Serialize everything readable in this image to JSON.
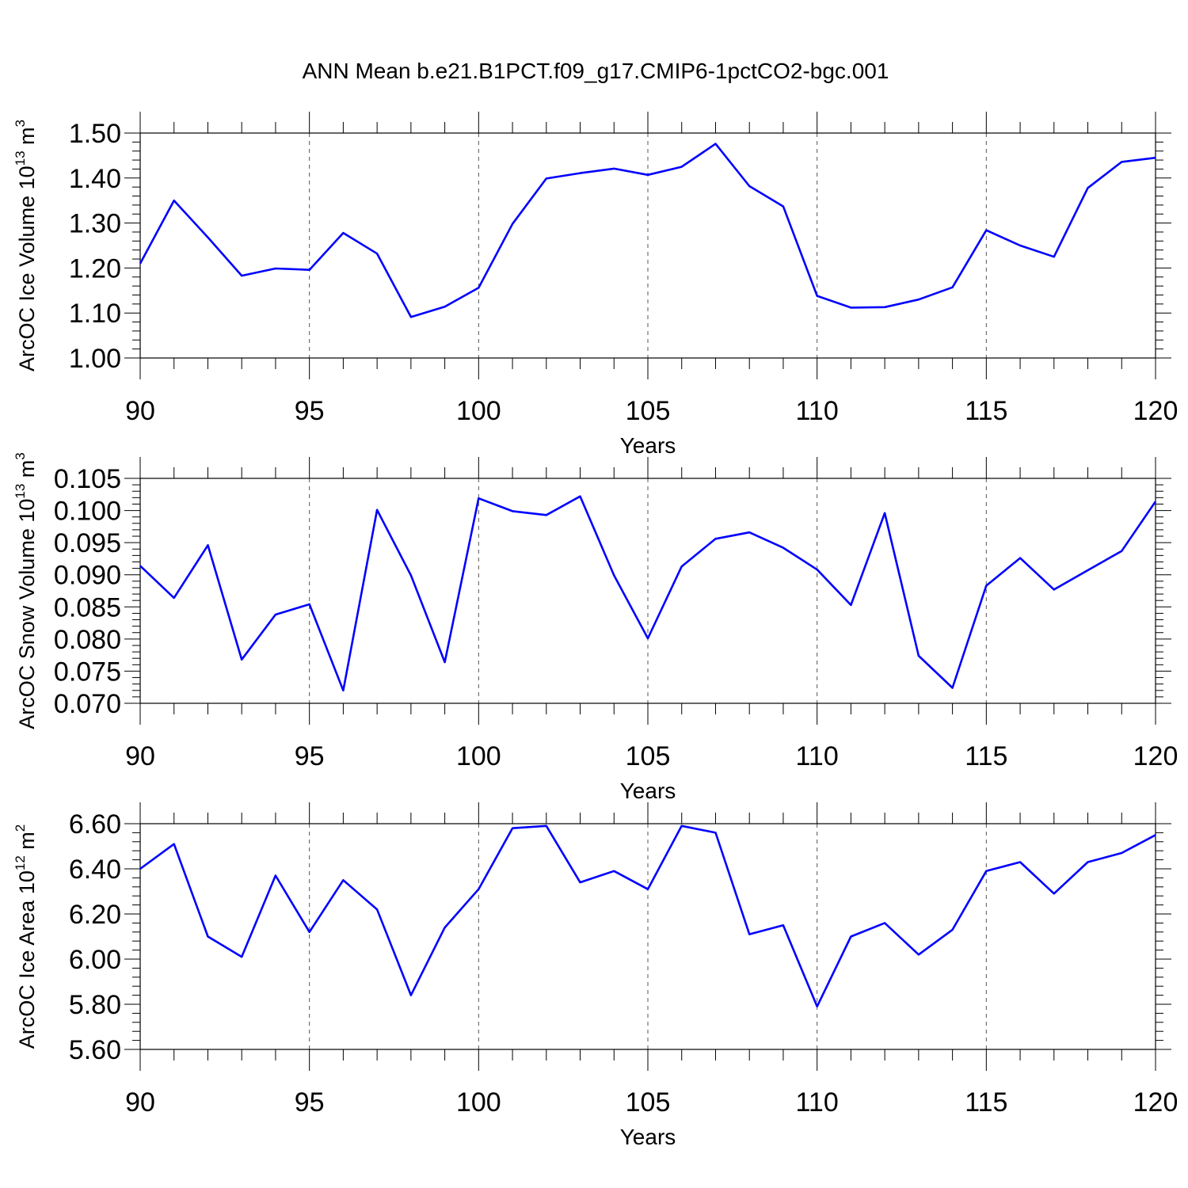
{
  "figure_title": "ANN Mean b.e21.B1PCT.f09_g17.CMIP6-1pctCO2-bgc.001",
  "chart_data": [
    {
      "type": "line",
      "ylabel": {
        "text": "ArcOC Ice Volume 10",
        "exp": "13",
        "unit": " m",
        "unit_exp": "3"
      },
      "xlabel": "Years",
      "xlim": [
        90,
        120
      ],
      "ylim": [
        1.0,
        1.5
      ],
      "xticks": [
        "90",
        "95",
        "100",
        "105",
        "110",
        "115",
        "120"
      ],
      "yticks": [
        "1.00",
        "1.10",
        "1.20",
        "1.30",
        "1.40",
        "1.50"
      ],
      "grid": "vertical dashed at major x ticks",
      "line_color": "#0000ff",
      "x": [
        90,
        91,
        92,
        93,
        94,
        95,
        96,
        97,
        98,
        99,
        100,
        101,
        102,
        103,
        104,
        105,
        106,
        107,
        108,
        109,
        110,
        111,
        112,
        113,
        114,
        115,
        116,
        117,
        118,
        119,
        120
      ],
      "y": [
        1.21,
        1.35,
        1.268,
        1.183,
        1.199,
        1.196,
        1.278,
        1.232,
        1.091,
        1.114,
        1.156,
        1.298,
        1.399,
        1.411,
        1.421,
        1.407,
        1.425,
        1.476,
        1.382,
        1.337,
        1.138,
        1.112,
        1.113,
        1.13,
        1.157,
        1.284,
        1.25,
        1.225,
        1.378,
        1.436,
        1.445
      ]
    },
    {
      "type": "line",
      "ylabel": {
        "text": "ArcOC Snow Volume 10",
        "exp": "13",
        "unit": " m",
        "unit_exp": "3"
      },
      "xlabel": "Years",
      "xlim": [
        90,
        120
      ],
      "ylim": [
        0.07,
        0.105
      ],
      "xticks": [
        "90",
        "95",
        "100",
        "105",
        "110",
        "115",
        "120"
      ],
      "yticks": [
        "0.070",
        "0.075",
        "0.080",
        "0.085",
        "0.090",
        "0.095",
        "0.100",
        "0.105"
      ],
      "grid": "vertical dashed at major x ticks",
      "line_color": "#0000ff",
      "x": [
        90,
        91,
        92,
        93,
        94,
        95,
        96,
        97,
        98,
        99,
        100,
        101,
        102,
        103,
        104,
        105,
        106,
        107,
        108,
        109,
        110,
        111,
        112,
        113,
        114,
        115,
        116,
        117,
        118,
        119,
        120
      ],
      "y": [
        0.0914,
        0.0864,
        0.0946,
        0.0768,
        0.0838,
        0.0854,
        0.072,
        0.1001,
        0.0899,
        0.0764,
        0.1019,
        0.0999,
        0.0993,
        0.1022,
        0.0899,
        0.0801,
        0.0913,
        0.0956,
        0.0966,
        0.0942,
        0.0908,
        0.0853,
        0.0996,
        0.0774,
        0.0724,
        0.0883,
        0.0926,
        0.0877,
        0.0907,
        0.0937,
        0.1014
      ]
    },
    {
      "type": "line",
      "ylabel": {
        "text": "ArcOC Ice Area 10",
        "exp": "12",
        "unit": " m",
        "unit_exp": "2"
      },
      "xlabel": "Years",
      "xlim": [
        90,
        120
      ],
      "ylim": [
        5.6,
        6.6
      ],
      "xticks": [
        "90",
        "95",
        "100",
        "105",
        "110",
        "115",
        "120"
      ],
      "yticks": [
        "5.60",
        "5.80",
        "6.00",
        "6.20",
        "6.40",
        "6.60"
      ],
      "grid": "vertical dashed at major x ticks",
      "line_color": "#0000ff",
      "x": [
        90,
        91,
        92,
        93,
        94,
        95,
        96,
        97,
        98,
        99,
        100,
        101,
        102,
        103,
        104,
        105,
        106,
        107,
        108,
        109,
        110,
        111,
        112,
        113,
        114,
        115,
        116,
        117,
        118,
        119,
        120
      ],
      "y": [
        6.4,
        6.51,
        6.1,
        6.01,
        6.37,
        6.12,
        6.35,
        6.22,
        5.84,
        6.14,
        6.31,
        6.58,
        6.59,
        6.34,
        6.39,
        6.31,
        6.59,
        6.56,
        6.11,
        6.15,
        5.79,
        6.1,
        6.16,
        6.02,
        6.13,
        6.39,
        6.43,
        6.29,
        6.43,
        6.47,
        6.55
      ]
    }
  ]
}
